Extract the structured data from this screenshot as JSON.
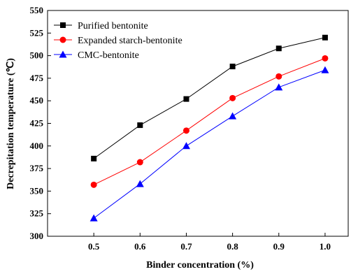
{
  "chart_data": {
    "type": "line",
    "title": "",
    "xlabel": "Binder concentration (%)",
    "ylabel": "Decrepitation temperature (℃)",
    "x": [
      0.5,
      0.6,
      0.7,
      0.8,
      0.9,
      1.0
    ],
    "x_tick_labels": [
      "0.5",
      "0.6",
      "0.7",
      "0.8",
      "0.9",
      "1.0"
    ],
    "xlim": [
      0.4,
      1.05
    ],
    "ylim": [
      300,
      550
    ],
    "y_ticks": [
      300,
      325,
      350,
      375,
      400,
      425,
      450,
      475,
      500,
      525,
      550
    ],
    "grid": false,
    "legend_position": "top-left",
    "series": [
      {
        "name": "Purified bentonite",
        "marker": "square",
        "color": "#000000",
        "values": [
          386,
          423,
          452,
          488,
          508,
          520
        ]
      },
      {
        "name": "Expanded starch-bentonite",
        "marker": "circle",
        "color": "#ff0000",
        "values": [
          357,
          382,
          417,
          453,
          477,
          497
        ]
      },
      {
        "name": "CMC-bentonite",
        "marker": "triangle",
        "color": "#0000ff",
        "values": [
          320,
          358,
          400,
          433,
          465,
          484
        ]
      }
    ]
  }
}
